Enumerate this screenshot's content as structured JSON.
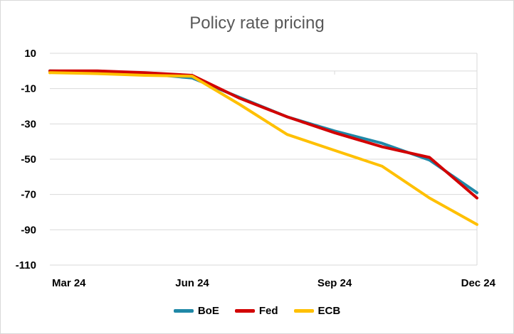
{
  "chart_data": {
    "type": "line",
    "title": "Policy rate pricing",
    "xlabel": "",
    "ylabel": "",
    "x_ticks": [
      "Mar 24",
      "Jun 24",
      "Sep 24",
      "Dec 24"
    ],
    "y_ticks": [
      "10",
      "-10",
      "-30",
      "-50",
      "-70",
      "-90",
      "-110"
    ],
    "ylim": [
      -110,
      10
    ],
    "xlim": [
      0,
      9
    ],
    "grid": true,
    "legend_position": "bottom",
    "series": [
      {
        "name": "BoE",
        "color": "#1F88A7",
        "x": [
          0,
          1,
          2,
          3,
          4,
          5,
          6,
          7,
          8,
          9
        ],
        "values": [
          0,
          -0.5,
          -1.5,
          -4,
          -15,
          -26,
          -34,
          -41,
          -50.5,
          -69
        ]
      },
      {
        "name": "Fed",
        "color": "#D20000",
        "x": [
          0,
          1,
          2,
          3,
          4,
          5,
          6,
          7,
          8,
          9
        ],
        "values": [
          0,
          0,
          -1,
          -2.5,
          -15.5,
          -26,
          -35,
          -43,
          -49,
          -72
        ]
      },
      {
        "name": "ECB",
        "color": "#FFC000",
        "x": [
          0,
          1,
          2,
          3,
          4,
          5,
          6,
          7,
          8,
          9
        ],
        "values": [
          -1,
          -1.5,
          -2.5,
          -3,
          -19,
          -36,
          -45,
          -54,
          -72,
          -87
        ]
      }
    ]
  }
}
